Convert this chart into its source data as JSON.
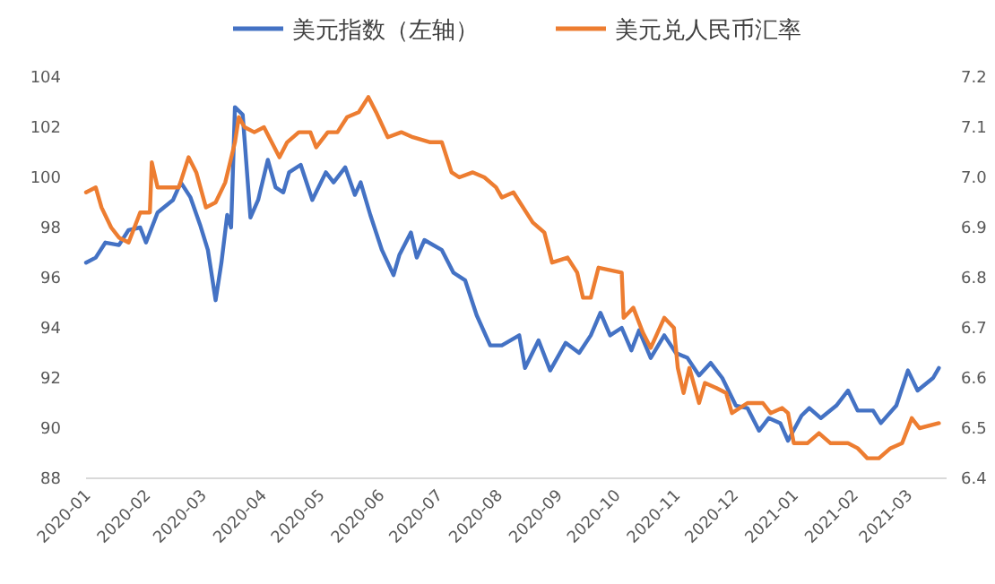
{
  "chart_data": {
    "type": "line",
    "legend": "top",
    "xlim": [
      "2020-01-01",
      "2021-03-21"
    ],
    "xticks": [
      {
        "value": "2020-01-01",
        "label": "2020-01"
      },
      {
        "value": "2020-02-01",
        "label": "2020-02"
      },
      {
        "value": "2020-03-01",
        "label": "2020-03"
      },
      {
        "value": "2020-04-01",
        "label": "2020-04"
      },
      {
        "value": "2020-05-01",
        "label": "2020-05"
      },
      {
        "value": "2020-06-01",
        "label": "2020-06"
      },
      {
        "value": "2020-07-01",
        "label": "2020-07"
      },
      {
        "value": "2020-08-01",
        "label": "2020-08"
      },
      {
        "value": "2020-09-01",
        "label": "2020-09"
      },
      {
        "value": "2020-10-01",
        "label": "2020-10"
      },
      {
        "value": "2020-11-01",
        "label": "2020-11"
      },
      {
        "value": "2020-12-01",
        "label": "2020-12"
      },
      {
        "value": "2021-01-01",
        "label": "2021-01"
      },
      {
        "value": "2021-02-01",
        "label": "2021-02"
      },
      {
        "value": "2021-03-01",
        "label": "2021-03"
      }
    ],
    "ylim": [
      88,
      104
    ],
    "yticks": [
      88,
      90,
      92,
      94,
      96,
      98,
      100,
      102,
      104
    ],
    "y2lim": [
      6.4,
      7.2
    ],
    "y2ticks": [
      6.4,
      6.5,
      6.6,
      6.7,
      6.8,
      6.9,
      {
        "value": 7,
        "label": "7.0"
      },
      7.1,
      7.2
    ],
    "series": [
      {
        "name": "美元指数（左轴）",
        "color": "#4472c4",
        "x": [
          "2020-01-01",
          "2020-01-06",
          "2020-01-11",
          "2020-01-18",
          "2020-01-23",
          "2020-01-29",
          "2020-02-01",
          "2020-02-07",
          "2020-02-15",
          "2020-02-19",
          "2020-02-24",
          "2020-02-29",
          "2020-03-04",
          "2020-03-08",
          "2020-03-11",
          "2020-03-14",
          "2020-03-16",
          "2020-03-18",
          "2020-03-22",
          "2020-03-26",
          "2020-03-30",
          "2020-04-04",
          "2020-04-08",
          "2020-04-12",
          "2020-04-15",
          "2020-04-21",
          "2020-04-27",
          "2020-05-04",
          "2020-05-08",
          "2020-05-14",
          "2020-05-19",
          "2020-05-22",
          "2020-05-27",
          "2020-06-02",
          "2020-06-08",
          "2020-06-11",
          "2020-06-17",
          "2020-06-20",
          "2020-06-24",
          "2020-07-03",
          "2020-07-09",
          "2020-07-15",
          "2020-07-21",
          "2020-07-28",
          "2020-08-03",
          "2020-08-12",
          "2020-08-15",
          "2020-08-22",
          "2020-08-28",
          "2020-09-05",
          "2020-09-12",
          "2020-09-18",
          "2020-09-23",
          "2020-09-28",
          "2020-10-04",
          "2020-10-09",
          "2020-10-13",
          "2020-10-19",
          "2020-10-26",
          "2020-11-01",
          "2020-11-07",
          "2020-11-13",
          "2020-11-19",
          "2020-11-25",
          "2020-12-02",
          "2020-12-08",
          "2020-12-14",
          "2020-12-19",
          "2020-12-25",
          "2020-12-29",
          "2021-01-05",
          "2021-01-09",
          "2021-01-15",
          "2021-01-23",
          "2021-01-29",
          "2021-02-03",
          "2021-02-11",
          "2021-02-15",
          "2021-02-23",
          "2021-03-01",
          "2021-03-06",
          "2021-03-14",
          "2021-03-17"
        ],
        "values": [
          96.6,
          96.8,
          97.4,
          97.3,
          97.9,
          98.0,
          97.4,
          98.6,
          99.1,
          99.8,
          99.2,
          98.1,
          97.1,
          95.1,
          96.6,
          98.5,
          98.0,
          102.8,
          102.5,
          98.4,
          99.1,
          100.7,
          99.6,
          99.4,
          100.2,
          100.5,
          99.1,
          100.2,
          99.8,
          100.4,
          99.3,
          99.8,
          98.5,
          97.1,
          96.1,
          96.9,
          97.8,
          96.8,
          97.5,
          97.1,
          96.2,
          95.9,
          94.5,
          93.3,
          93.3,
          93.7,
          92.4,
          93.5,
          92.3,
          93.4,
          93.0,
          93.7,
          94.6,
          93.7,
          94.0,
          93.1,
          93.9,
          92.8,
          93.7,
          93.0,
          92.8,
          92.1,
          92.6,
          92.0,
          90.9,
          90.8,
          89.9,
          90.4,
          90.2,
          89.5,
          90.5,
          90.8,
          90.4,
          90.9,
          91.5,
          90.7,
          90.7,
          90.2,
          90.9,
          92.3,
          91.5,
          92.0,
          92.4
        ]
      },
      {
        "name": "美元兑人民币汇率",
        "color": "#ed7d31",
        "axis": "y2",
        "x": [
          "2020-01-01",
          "2020-01-06",
          "2020-01-09",
          "2020-01-14",
          "2020-01-18",
          "2020-01-23",
          "2020-01-29",
          "2020-02-03",
          "2020-02-04",
          "2020-02-07",
          "2020-02-12",
          "2020-02-18",
          "2020-02-23",
          "2020-02-27",
          "2020-03-03",
          "2020-03-08",
          "2020-03-13",
          "2020-03-18",
          "2020-03-20",
          "2020-03-23",
          "2020-03-28",
          "2020-04-02",
          "2020-04-06",
          "2020-04-10",
          "2020-04-14",
          "2020-04-20",
          "2020-04-26",
          "2020-04-29",
          "2020-05-05",
          "2020-05-10",
          "2020-05-15",
          "2020-05-21",
          "2020-05-26",
          "2020-05-30",
          "2020-06-05",
          "2020-06-12",
          "2020-06-18",
          "2020-06-27",
          "2020-07-03",
          "2020-07-08",
          "2020-07-12",
          "2020-07-19",
          "2020-07-25",
          "2020-07-31",
          "2020-08-03",
          "2020-08-09",
          "2020-08-19",
          "2020-08-25",
          "2020-08-29",
          "2020-09-06",
          "2020-09-11",
          "2020-09-14",
          "2020-09-18",
          "2020-09-22",
          "2020-10-04",
          "2020-10-05",
          "2020-10-10",
          "2020-10-15",
          "2020-10-19",
          "2020-10-26",
          "2020-10-31",
          "2020-11-02",
          "2020-11-05",
          "2020-11-08",
          "2020-11-13",
          "2020-11-16",
          "2020-11-22",
          "2020-11-27",
          "2020-11-30",
          "2020-12-08",
          "2020-12-16",
          "2020-12-20",
          "2020-12-26",
          "2020-12-29",
          "2021-01-01",
          "2021-01-08",
          "2021-01-14",
          "2021-01-20",
          "2021-01-29",
          "2021-02-03",
          "2021-02-08",
          "2021-02-14",
          "2021-02-20",
          "2021-02-26",
          "2021-03-03",
          "2021-03-07",
          "2021-03-17"
        ],
        "values": [
          6.97,
          6.98,
          6.94,
          6.9,
          6.88,
          6.87,
          6.93,
          6.93,
          7.03,
          6.98,
          6.98,
          6.98,
          7.04,
          7.01,
          6.94,
          6.95,
          6.99,
          7.07,
          7.12,
          7.1,
          7.09,
          7.1,
          7.07,
          7.04,
          7.07,
          7.09,
          7.09,
          7.06,
          7.09,
          7.09,
          7.12,
          7.13,
          7.16,
          7.13,
          7.08,
          7.09,
          7.08,
          7.07,
          7.07,
          7.01,
          7.0,
          7.01,
          7.0,
          6.98,
          6.96,
          6.97,
          6.91,
          6.89,
          6.83,
          6.84,
          6.81,
          6.76,
          6.76,
          6.82,
          6.81,
          6.72,
          6.74,
          6.69,
          6.66,
          6.72,
          6.7,
          6.62,
          6.57,
          6.62,
          6.55,
          6.59,
          6.58,
          6.57,
          6.53,
          6.55,
          6.55,
          6.53,
          6.54,
          6.53,
          6.47,
          6.47,
          6.49,
          6.47,
          6.47,
          6.46,
          6.44,
          6.44,
          6.46,
          6.47,
          6.52,
          6.5,
          6.51
        ]
      }
    ]
  }
}
